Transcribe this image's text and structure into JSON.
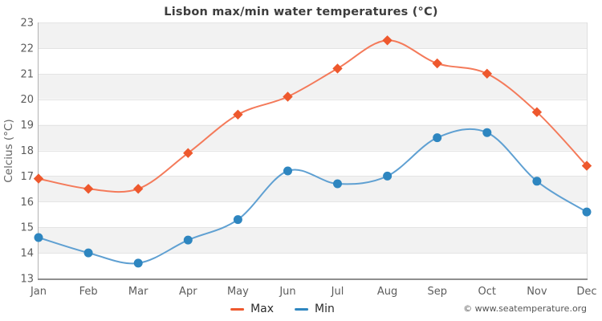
{
  "chart_data": {
    "type": "line",
    "title": "Lisbon max/min water temperatures (°C)",
    "ylabel": "Celcius (°C)",
    "xlabel": "",
    "categories": [
      "Jan",
      "Feb",
      "Mar",
      "Apr",
      "May",
      "Jun",
      "Jul",
      "Aug",
      "Sep",
      "Oct",
      "Nov",
      "Dec"
    ],
    "series": [
      {
        "name": "Max",
        "marker": "diamond",
        "marker_color": "#ee582d",
        "line_color": "#f47a5a",
        "values": [
          16.9,
          16.5,
          16.5,
          17.9,
          19.4,
          20.1,
          21.2,
          22.3,
          21.4,
          21.0,
          19.5,
          17.4
        ]
      },
      {
        "name": "Min",
        "marker": "circle",
        "marker_color": "#2e86c0",
        "line_color": "#5fa0d2",
        "values": [
          14.6,
          14.0,
          13.6,
          14.5,
          15.3,
          17.2,
          16.7,
          17.0,
          18.5,
          18.7,
          16.8,
          15.6
        ]
      }
    ],
    "ylim": [
      13,
      23
    ],
    "y_tick_step": 1,
    "grid": true,
    "legend_position": "bottom",
    "plot_band_colors": {
      "shaded": "#f2f2f2",
      "plain": "#ffffff"
    },
    "axis_colors": {
      "gridline": "#e4e4e4",
      "y_axis": "#b3b3b3",
      "x_axis": "#8f8f8f",
      "right_border": "#dedede",
      "tick_text": "#5c5c5c"
    }
  },
  "footer": {
    "copyright": "© www.seatemperature.org"
  }
}
